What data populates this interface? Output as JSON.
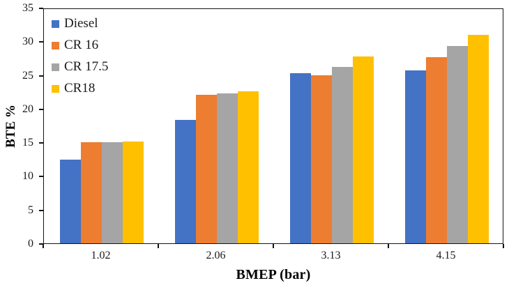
{
  "chart_data": {
    "type": "bar",
    "title": "",
    "xlabel": "BMEP (bar)",
    "ylabel": "BTE %",
    "categories": [
      "1.02",
      "2.06",
      "3.13",
      "4.15"
    ],
    "series": [
      {
        "name": "Diesel",
        "color": "#4472C4",
        "values": [
          12.4,
          18.3,
          25.3,
          25.7
        ]
      },
      {
        "name": "CR 16",
        "color": "#ED7D31",
        "values": [
          15.0,
          22.1,
          25.0,
          27.6
        ]
      },
      {
        "name": "CR 17.5",
        "color": "#A5A5A5",
        "values": [
          15.0,
          22.3,
          26.2,
          29.3
        ]
      },
      {
        "name": "CR18",
        "color": "#FFC000",
        "values": [
          15.1,
          22.6,
          27.8,
          31.0
        ]
      }
    ],
    "ylim": [
      0,
      35
    ],
    "yticks": [
      0,
      5,
      10,
      15,
      20,
      25,
      30,
      35
    ],
    "grid": false,
    "legend_position": "top-left-inside",
    "plot_border_color": "#141414",
    "background_color": "#FFFFFF"
  }
}
